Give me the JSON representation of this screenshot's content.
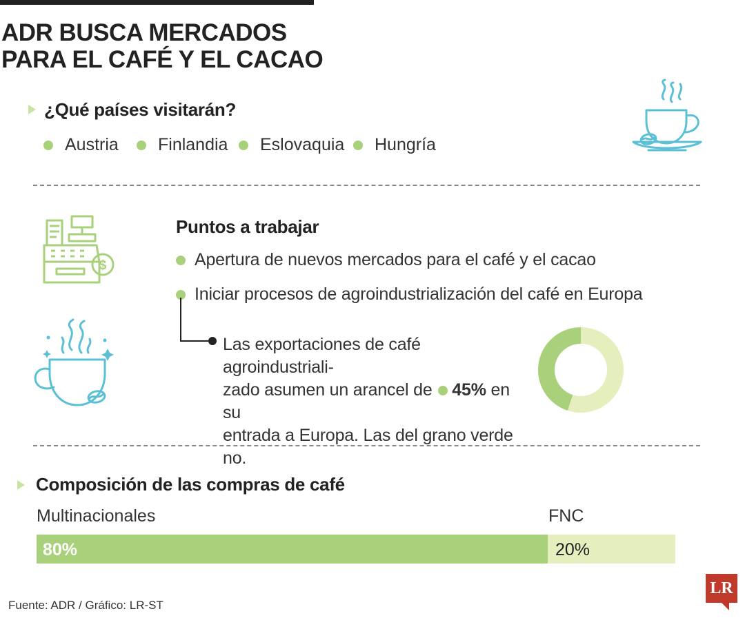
{
  "title": {
    "line1": "ADR BUSCA MERCADOS",
    "line2": "PARA EL CAFÉ Y EL CACAO"
  },
  "countries": {
    "heading": "¿Qué países visitarán?",
    "items": [
      "Austria",
      "Finlandia",
      "Eslovaquia",
      "Hungría"
    ]
  },
  "points": {
    "heading": "Puntos a trabajar",
    "items": [
      "Apertura de nuevos mercados para el café y el cacao",
      "Iniciar procesos de agroindustrialización del café en Europa"
    ],
    "note": {
      "line1": "Las exportaciones de café agroindustriali-",
      "line2_pre": "zado asumen un arancel de",
      "pct": "45%",
      "line2_post": "en su",
      "line3": "entrada a Europa. Las del grano verde no."
    }
  },
  "tariff_donut": {
    "value_pct": 45,
    "colors": {
      "value": "#a9d17b",
      "rest": "#e4efbd"
    }
  },
  "purchases": {
    "heading": "Composición de las compras de café",
    "segments": [
      {
        "name": "Multinacionales",
        "value_pct": 80,
        "label": "80%",
        "color": "#a9d17b"
      },
      {
        "name": "FNC",
        "value_pct": 20,
        "label": "20%",
        "color": "#e4efbd"
      }
    ]
  },
  "source": "Fuente: ADR / Gráfico: LR-ST",
  "logo_text": "LR",
  "icons": {
    "coffee_top": "coffee-cup-saucer-icon",
    "register": "cash-register-icon",
    "coffee_left": "coffee-cup-steam-icon"
  },
  "colors": {
    "green": "#a9d17b",
    "light_green": "#e4efbd",
    "icon_blue": "#5bbfd6",
    "brand_red": "#c0392b"
  }
}
